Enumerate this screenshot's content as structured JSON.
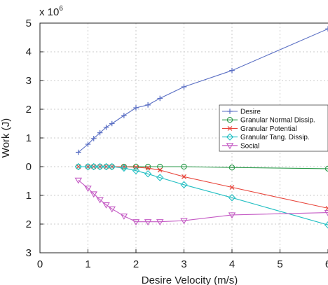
{
  "chart_data": {
    "type": "line",
    "xlabel": "Desire Velocity (m/s)",
    "ylabel": "Work (J)",
    "y_multiplier_label": "x 10",
    "y_multiplier_exponent": "6",
    "xlim": [
      0,
      6
    ],
    "ylim": [
      -3,
      5
    ],
    "x_ticks": [
      0,
      1,
      2,
      3,
      4,
      5,
      6
    ],
    "x_tick_labels": [
      "0",
      "1",
      "2",
      "3",
      "4",
      "5",
      "6"
    ],
    "y_ticks": [
      5,
      4,
      3,
      2,
      1,
      0,
      -1,
      -2,
      -3
    ],
    "y_tick_labels": [
      "5",
      "4",
      "3",
      "2",
      "1",
      "0",
      "1",
      "2",
      "3"
    ],
    "grid": true,
    "legend_position": "center-right",
    "series": [
      {
        "name": "Desire",
        "color": "#5a6fc4",
        "marker": "plus",
        "x": [
          0.8,
          1.0,
          1.12,
          1.25,
          1.38,
          1.5,
          1.75,
          2.0,
          2.25,
          2.5,
          3.0,
          4.0,
          6.0
        ],
        "y": [
          0.5,
          0.78,
          0.98,
          1.18,
          1.37,
          1.5,
          1.78,
          2.05,
          2.15,
          2.38,
          2.78,
          3.35,
          4.8
        ]
      },
      {
        "name": "Granular Normal Dissip.",
        "color": "#2a9a4a",
        "marker": "circle",
        "x": [
          0.8,
          1.0,
          1.12,
          1.25,
          1.38,
          1.5,
          1.75,
          2.0,
          2.25,
          2.5,
          3.0,
          4.0,
          6.0
        ],
        "y": [
          0.0,
          0.0,
          0.0,
          0.0,
          0.0,
          0.0,
          0.0,
          0.0,
          0.0,
          0.0,
          0.0,
          -0.03,
          -0.07
        ]
      },
      {
        "name": "Granular Potential",
        "color": "#e8443a",
        "marker": "x",
        "x": [
          0.8,
          1.0,
          1.12,
          1.25,
          1.38,
          1.5,
          1.75,
          2.0,
          2.25,
          2.5,
          3.0,
          4.0,
          6.0
        ],
        "y": [
          0.0,
          0.0,
          0.0,
          0.0,
          0.0,
          0.0,
          0.0,
          -0.02,
          -0.05,
          -0.12,
          -0.35,
          -0.72,
          -1.45
        ]
      },
      {
        "name": "Granular Tang. Dissip.",
        "color": "#22bfc3",
        "marker": "diamond",
        "x": [
          0.8,
          1.0,
          1.12,
          1.25,
          1.38,
          1.5,
          1.75,
          2.0,
          2.25,
          2.5,
          3.0,
          4.0,
          6.0
        ],
        "y": [
          0.0,
          0.0,
          0.0,
          0.0,
          0.0,
          0.0,
          -0.05,
          -0.14,
          -0.25,
          -0.38,
          -0.63,
          -1.08,
          -2.03
        ]
      },
      {
        "name": "Social",
        "color": "#c45ac4",
        "marker": "triangle-down",
        "x": [
          0.8,
          1.0,
          1.12,
          1.25,
          1.38,
          1.5,
          1.75,
          2.0,
          2.25,
          2.5,
          3.0,
          4.0,
          6.0
        ],
        "y": [
          -0.47,
          -0.75,
          -0.95,
          -1.15,
          -1.33,
          -1.47,
          -1.72,
          -1.92,
          -1.92,
          -1.92,
          -1.88,
          -1.68,
          -1.6
        ]
      }
    ]
  }
}
